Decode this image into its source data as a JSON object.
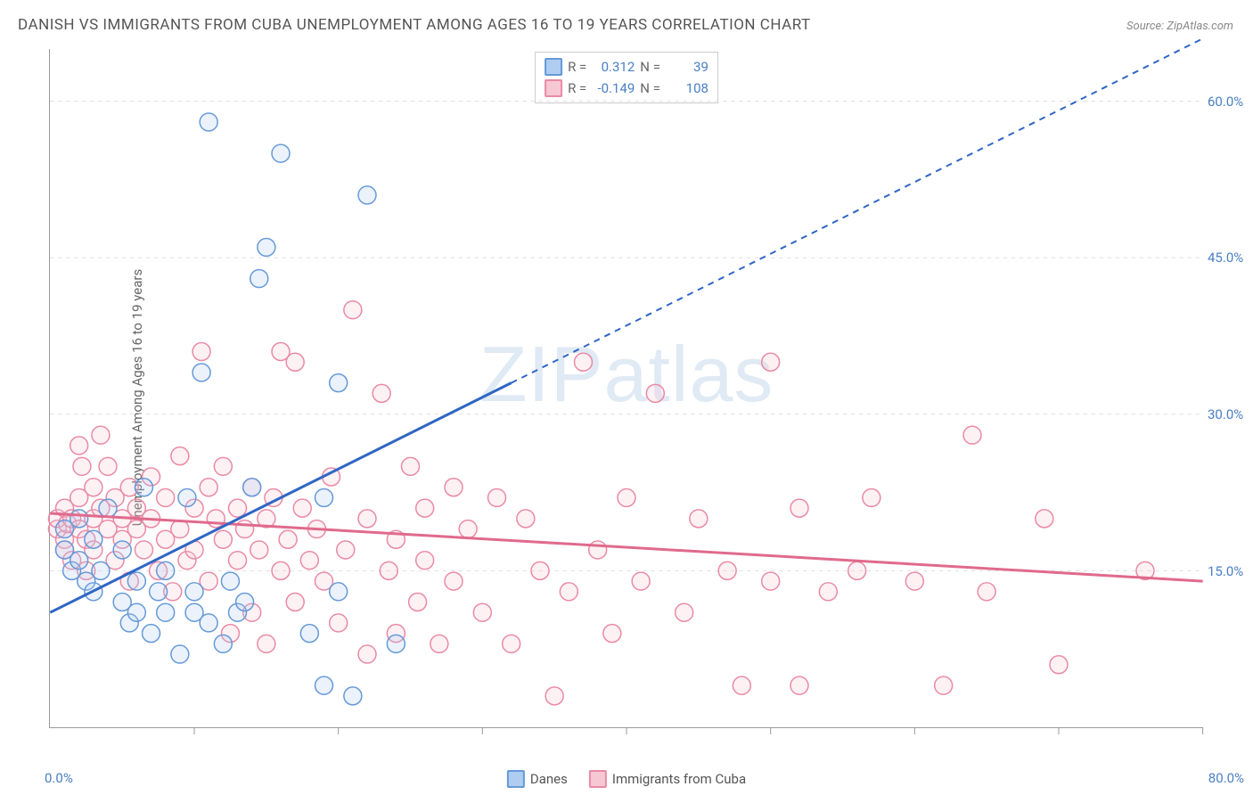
{
  "title": "DANISH VS IMMIGRANTS FROM CUBA UNEMPLOYMENT AMONG AGES 16 TO 19 YEARS CORRELATION CHART",
  "source": "Source: ZipAtlas.com",
  "y_axis_label": "Unemployment Among Ages 16 to 19 years",
  "watermark": "ZIPatlas",
  "chart": {
    "type": "scatter",
    "xlim": [
      0,
      80
    ],
    "ylim": [
      0,
      65
    ],
    "x_ticks": [
      10,
      20,
      30,
      40,
      50,
      60,
      70,
      80
    ],
    "y_grid": [
      15,
      30,
      45,
      60
    ],
    "y_tick_labels": [
      "15.0%",
      "30.0%",
      "45.0%",
      "60.0%"
    ],
    "x_min_label": "0.0%",
    "x_max_label": "80.0%",
    "background_color": "#ffffff",
    "grid_color": "#dddddd",
    "axis_color": "#999999",
    "tick_label_color": "#4a7fc4",
    "marker_radius": 10,
    "marker_stroke_width": 1.5,
    "marker_fill_opacity": 0.25,
    "line_width_solid": 3,
    "line_width_dashed": 2,
    "dash_pattern": "7,6"
  },
  "series": {
    "danes": {
      "label": "Danes",
      "color_fill": "#aecdf0",
      "color_stroke": "#6599d8",
      "R": "0.312",
      "N": "39",
      "trend": {
        "x1": 0,
        "y1": 11,
        "x2_solid": 32,
        "y2_solid": 33,
        "x2_dash": 80,
        "y2_dash": 66
      },
      "points": [
        [
          1,
          17
        ],
        [
          1,
          19
        ],
        [
          1.5,
          15
        ],
        [
          2,
          16
        ],
        [
          2,
          20
        ],
        [
          2.5,
          14
        ],
        [
          3,
          18
        ],
        [
          3,
          13
        ],
        [
          3.5,
          15
        ],
        [
          4,
          21
        ],
        [
          5,
          17
        ],
        [
          5,
          12
        ],
        [
          5.5,
          10
        ],
        [
          6,
          14
        ],
        [
          6,
          11
        ],
        [
          6.5,
          23
        ],
        [
          7,
          9
        ],
        [
          7.5,
          13
        ],
        [
          8,
          15
        ],
        [
          8,
          11
        ],
        [
          9,
          7
        ],
        [
          9.5,
          22
        ],
        [
          10,
          11
        ],
        [
          10,
          13
        ],
        [
          10.5,
          34
        ],
        [
          11,
          58
        ],
        [
          11,
          10
        ],
        [
          12,
          8
        ],
        [
          12.5,
          14
        ],
        [
          13,
          11
        ],
        [
          13.5,
          12
        ],
        [
          14,
          23
        ],
        [
          14.5,
          43
        ],
        [
          15,
          46
        ],
        [
          16,
          55
        ],
        [
          18,
          9
        ],
        [
          19,
          4
        ],
        [
          20,
          33
        ],
        [
          22,
          51
        ],
        [
          20,
          13
        ],
        [
          21,
          3
        ],
        [
          19,
          22
        ],
        [
          24,
          8
        ]
      ]
    },
    "cuba": {
      "label": "Immigrants from Cuba",
      "color_fill": "#f6c8d4",
      "color_stroke": "#e98aa5",
      "R": "-0.149",
      "N": "108",
      "trend": {
        "x1": 0,
        "y1": 20.5,
        "x2": 80,
        "y2": 14
      },
      "points": [
        [
          0.5,
          19
        ],
        [
          0.5,
          20
        ],
        [
          1,
          18
        ],
        [
          1,
          21
        ],
        [
          1,
          17
        ],
        [
          1.2,
          19.5
        ],
        [
          1.5,
          20
        ],
        [
          1.5,
          16
        ],
        [
          2,
          27
        ],
        [
          2,
          22
        ],
        [
          2,
          19
        ],
        [
          2.2,
          25
        ],
        [
          2.5,
          18
        ],
        [
          2.5,
          15
        ],
        [
          3,
          23
        ],
        [
          3,
          20
        ],
        [
          3,
          17
        ],
        [
          3.5,
          28
        ],
        [
          3.5,
          21
        ],
        [
          4,
          19
        ],
        [
          4,
          25
        ],
        [
          4.5,
          22
        ],
        [
          4.5,
          16
        ],
        [
          5,
          20
        ],
        [
          5,
          18
        ],
        [
          5.5,
          23
        ],
        [
          5.5,
          14
        ],
        [
          6,
          19
        ],
        [
          6,
          21
        ],
        [
          6.5,
          17
        ],
        [
          7,
          24
        ],
        [
          7,
          20
        ],
        [
          7.5,
          15
        ],
        [
          8,
          22
        ],
        [
          8,
          18
        ],
        [
          8.5,
          13
        ],
        [
          9,
          26
        ],
        [
          9,
          19
        ],
        [
          9.5,
          16
        ],
        [
          10,
          21
        ],
        [
          10,
          17
        ],
        [
          10.5,
          36
        ],
        [
          11,
          23
        ],
        [
          11,
          14
        ],
        [
          11.5,
          20
        ],
        [
          12,
          18
        ],
        [
          12,
          25
        ],
        [
          12.5,
          9
        ],
        [
          13,
          21
        ],
        [
          13,
          16
        ],
        [
          13.5,
          19
        ],
        [
          14,
          23
        ],
        [
          14,
          11
        ],
        [
          14.5,
          17
        ],
        [
          15,
          20
        ],
        [
          15,
          8
        ],
        [
          15.5,
          22
        ],
        [
          16,
          36
        ],
        [
          16,
          15
        ],
        [
          16.5,
          18
        ],
        [
          17,
          35
        ],
        [
          17,
          12
        ],
        [
          17.5,
          21
        ],
        [
          18,
          16
        ],
        [
          18.5,
          19
        ],
        [
          19,
          14
        ],
        [
          19.5,
          24
        ],
        [
          20,
          10
        ],
        [
          20.5,
          17
        ],
        [
          21,
          40
        ],
        [
          22,
          20
        ],
        [
          22,
          7
        ],
        [
          23,
          32
        ],
        [
          23.5,
          15
        ],
        [
          24,
          18
        ],
        [
          24,
          9
        ],
        [
          25,
          25
        ],
        [
          25.5,
          12
        ],
        [
          26,
          21
        ],
        [
          26,
          16
        ],
        [
          27,
          8
        ],
        [
          28,
          23
        ],
        [
          28,
          14
        ],
        [
          29,
          19
        ],
        [
          30,
          11
        ],
        [
          31,
          22
        ],
        [
          32,
          8
        ],
        [
          33,
          20
        ],
        [
          34,
          15
        ],
        [
          35,
          3
        ],
        [
          36,
          13
        ],
        [
          37,
          35
        ],
        [
          38,
          17
        ],
        [
          39,
          9
        ],
        [
          40,
          22
        ],
        [
          41,
          14
        ],
        [
          42,
          32
        ],
        [
          44,
          11
        ],
        [
          45,
          20
        ],
        [
          47,
          15
        ],
        [
          48,
          4
        ],
        [
          50,
          35
        ],
        [
          50,
          14
        ],
        [
          52,
          21
        ],
        [
          52,
          4
        ],
        [
          54,
          13
        ],
        [
          56,
          15
        ],
        [
          57,
          22
        ],
        [
          60,
          14
        ],
        [
          62,
          4
        ],
        [
          64,
          28
        ],
        [
          65,
          13
        ],
        [
          69,
          20
        ],
        [
          70,
          6
        ],
        [
          76,
          15
        ]
      ]
    }
  },
  "stats_labels": {
    "R": "R =",
    "N": "N ="
  },
  "legend": {
    "items": [
      {
        "key": "danes",
        "label": "Danes"
      },
      {
        "key": "cuba",
        "label": "Immigrants from Cuba"
      }
    ]
  }
}
